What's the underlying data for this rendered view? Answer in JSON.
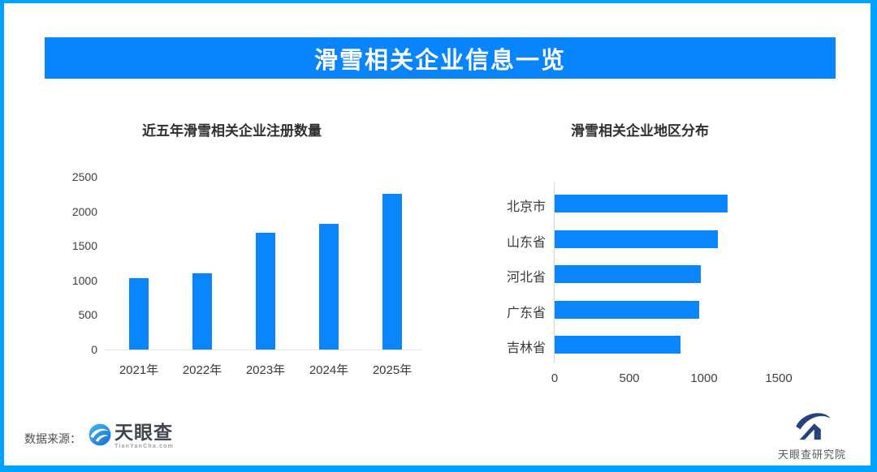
{
  "banner": {
    "title": "滑雪相关企业信息一览"
  },
  "chart_data": [
    {
      "type": "bar",
      "orientation": "vertical",
      "title": "近五年滑雪相关企业注册数量",
      "categories": [
        "2021年",
        "2022年",
        "2023年",
        "2024年",
        "2025年"
      ],
      "values": [
        1030,
        1100,
        1690,
        1820,
        2250
      ],
      "xlabel": "",
      "ylabel": "",
      "ylim": [
        0,
        2500
      ],
      "yticks": [
        0,
        500,
        1000,
        1500,
        2000,
        2500
      ],
      "grid": false,
      "legend": "none",
      "bar_color": "#0a85fc"
    },
    {
      "type": "bar",
      "orientation": "horizontal",
      "title": "滑雪相关企业地区分布",
      "categories": [
        "北京市",
        "山东省",
        "河北省",
        "广东省",
        "吉林省"
      ],
      "values": [
        1160,
        1090,
        980,
        965,
        845
      ],
      "xlabel": "",
      "ylabel": "",
      "xlim": [
        0,
        2000
      ],
      "xticks": [
        0,
        500,
        1000,
        1500
      ],
      "grid": false,
      "legend": "none",
      "bar_color": "#0a85fc"
    }
  ],
  "footer": {
    "source_label": "数据来源：",
    "tianyancha": {
      "name": "天眼查",
      "domain": "TianYanCha.com"
    },
    "research": {
      "name": "天眼查研究院"
    }
  },
  "colors": {
    "accent": "#0a85fc",
    "banner_bg": "#0884fc",
    "frame_border": "#00a2ff"
  }
}
